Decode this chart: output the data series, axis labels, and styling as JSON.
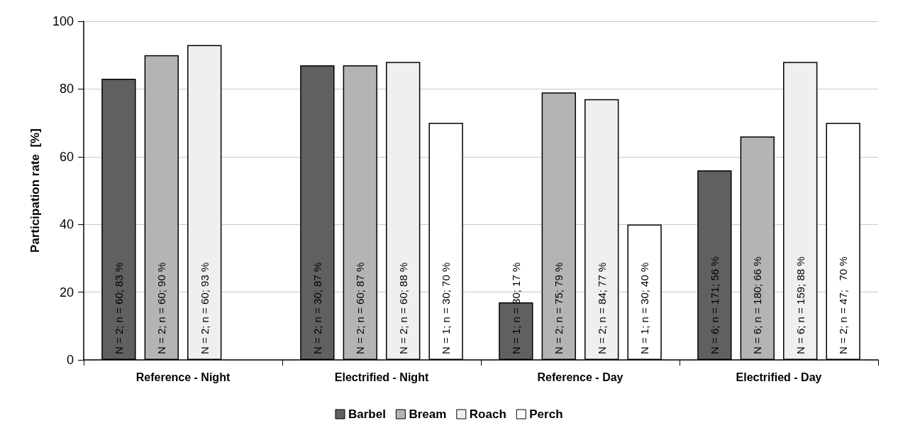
{
  "chart_data": {
    "type": "bar",
    "ylabel": "Participation rate  [%]",
    "categories": [
      "Reference - Night",
      "Electrified - Night",
      "Reference - Day",
      "Electrified - Day"
    ],
    "series": [
      {
        "name": "Barbel",
        "color": "#606060",
        "values": [
          83,
          87,
          17,
          56
        ],
        "value_labels": [
          "N = 2; n = 60; 83 %",
          "N = 2; n = 30; 87 %",
          "N = 1; n = 30; 17 %",
          "N = 6; n = 171; 56 %"
        ]
      },
      {
        "name": "Bream",
        "color": "#b4b4b4",
        "values": [
          90,
          87,
          79,
          66
        ],
        "value_labels": [
          "N = 2; n = 60; 90 %",
          "N = 2; n = 60; 87 %",
          "N = 2; n = 75; 79 %",
          "N = 6; n = 180; 66 %"
        ]
      },
      {
        "name": "Roach",
        "color": "#efefef",
        "values": [
          93,
          88,
          77,
          88
        ],
        "value_labels": [
          "N = 2; n = 60; 93 %",
          "N = 2; n = 60; 88 %",
          "N = 2; n = 84; 77 %",
          "N = 6; n = 159; 88 %"
        ]
      },
      {
        "name": "Perch",
        "color": "#ffffff",
        "values": [
          null,
          70,
          40,
          70
        ],
        "value_labels": [
          null,
          "N = 1; n = 30; 70 %",
          "N = 1; n = 30; 40 %",
          "N = 2; n = 47;   70 %"
        ]
      }
    ],
    "ylim": [
      0,
      100
    ],
    "yticks": [
      0,
      20,
      40,
      60,
      80,
      100
    ],
    "grid": "y",
    "legend": "bottom"
  }
}
